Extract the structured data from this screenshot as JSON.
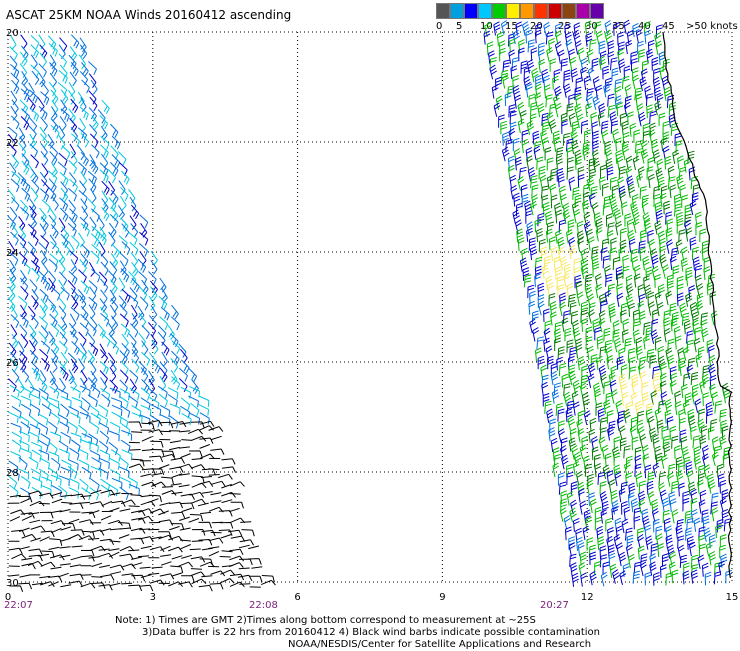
{
  "title": "ASCAT 25KM NOAA Winds 20160412 ascending",
  "scale": {
    "colors": [
      "#555555",
      "#00a0e0",
      "#0000ff",
      "#00c8ff",
      "#00cc00",
      "#ffee00",
      "#ff9900",
      "#ff3300",
      "#cc0000",
      "#8b4513",
      "#aa00aa",
      "#6600aa"
    ],
    "labels": [
      "0",
      "5",
      "10",
      "15",
      "20",
      "25",
      "30",
      "35",
      "40",
      "45",
      ">50 knots"
    ]
  },
  "map": {
    "lat_labels": [
      "20",
      "22",
      "24",
      "26",
      "28",
      "30"
    ],
    "lon_labels": [
      "0",
      "3",
      "6",
      "9",
      "12",
      "15"
    ],
    "time_labels": [
      "22:07",
      "22:08",
      "20:27"
    ],
    "barb_colors": {
      "contaminated": "#000000",
      "light": "#00c8e0",
      "mid_blue": "#0070e0",
      "dark_blue": "#0000cc",
      "green": "#00bb00",
      "dark_green": "#007700",
      "yellow": "#f8e860"
    }
  },
  "notes": [
    "Note: 1) Times are GMT 2)Times along bottom correspond to measurement at ~25S",
    "3)Data buffer is 22 hrs from 20160412 4) Black wind barbs indicate possible contamination",
    "NOAA/NESDIS/Center for Satellite Applications and Research"
  ]
}
